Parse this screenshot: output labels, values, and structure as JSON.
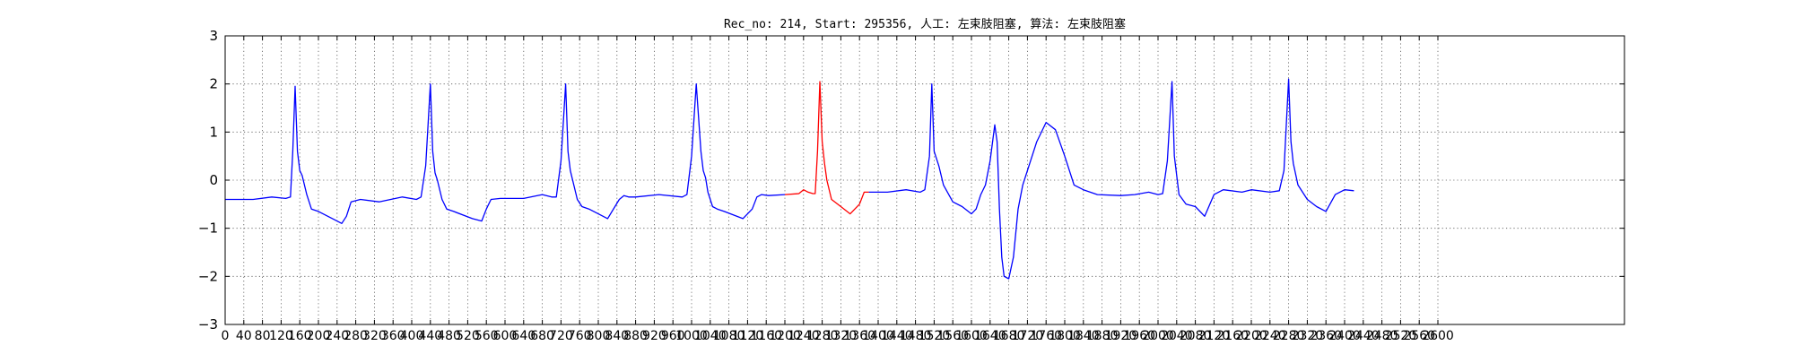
{
  "chart_data": {
    "type": "line",
    "title": "Rec_no: 214, Start: 295356, 人工: 左束肢阻塞, 算法: 左束肢阻塞",
    "xlabel": "",
    "ylabel": "",
    "xlim": [
      0,
      3000
    ],
    "ylim": [
      -3,
      3
    ],
    "grid": true,
    "x_ticks": [
      0,
      40,
      80,
      120,
      160,
      200,
      240,
      280,
      320,
      360,
      400,
      440,
      480,
      520,
      560,
      600,
      640,
      680,
      720,
      760,
      800,
      840,
      880,
      920,
      960,
      1000,
      1040,
      1080,
      1120,
      1160,
      1200,
      1240,
      1280,
      1320,
      1360,
      1400,
      1440,
      1480,
      1520,
      1560,
      1600,
      1640,
      1680,
      1720,
      1760,
      1800,
      1840,
      1880,
      1920,
      1960,
      2000,
      2040,
      2080,
      2120,
      2160,
      2200,
      2240,
      2280,
      2320,
      2360,
      2400,
      2440,
      2480,
      2520,
      2560,
      2600
    ],
    "x_tick_labels": [
      "0",
      "40",
      "80",
      "120",
      "160",
      "200",
      "240",
      "280",
      "320",
      "360",
      "400",
      "440",
      "480",
      "520",
      "560",
      "600",
      "640",
      "680",
      "720",
      "760",
      "800",
      "840",
      "880",
      "920",
      "960",
      "1000",
      "1040",
      "1080",
      "1120",
      "1160",
      "1200",
      "1240",
      "1280",
      "1320",
      "1360",
      "1400",
      "1440",
      "1480",
      "1520",
      "1560",
      "1600",
      "1640",
      "1680",
      "1720",
      "1760",
      "1800",
      "1840",
      "1880",
      "1920",
      "1960",
      "2000",
      "2040",
      "2080",
      "2120",
      "2160",
      "2200",
      "2240",
      "2280",
      "2320",
      "2360",
      "2400",
      "2440",
      "2480",
      "2520",
      "2560",
      "2600"
    ],
    "y_ticks": [
      -3,
      -2,
      -1,
      0,
      1,
      2,
      3
    ],
    "y_tick_labels": [
      "−3",
      "−2",
      "−1",
      "0",
      "1",
      "2",
      "3"
    ],
    "series": [
      {
        "color": "#0000ff",
        "x": [
          0,
          60,
          100,
          130,
          140,
          145,
          150,
          155,
          160,
          165,
          175,
          185,
          200,
          230,
          250,
          260,
          270,
          290,
          330,
          380,
          410,
          420,
          430,
          440,
          445,
          450,
          455,
          465,
          475,
          490,
          530,
          550,
          560,
          570,
          590,
          640,
          680,
          700,
          710,
          720,
          730,
          735,
          740,
          745,
          755,
          765,
          780,
          820,
          845,
          855,
          865,
          880,
          930,
          980,
          990,
          1000,
          1010,
          1020,
          1025,
          1030,
          1035,
          1045,
          1055,
          1070,
          1110,
          1130,
          1140,
          1150,
          1165,
          1200
        ],
        "y": [
          -0.4,
          -0.4,
          -0.35,
          -0.38,
          -0.35,
          0.6,
          1.95,
          0.6,
          0.2,
          0.1,
          -0.3,
          -0.6,
          -0.65,
          -0.8,
          -0.9,
          -0.75,
          -0.45,
          -0.4,
          -0.45,
          -0.35,
          -0.4,
          -0.35,
          0.3,
          2.0,
          0.6,
          0.15,
          0.0,
          -0.4,
          -0.6,
          -0.65,
          -0.8,
          -0.85,
          -0.6,
          -0.4,
          -0.38,
          -0.38,
          -0.3,
          -0.35,
          -0.35,
          0.4,
          2.0,
          0.6,
          0.2,
          0.0,
          -0.4,
          -0.55,
          -0.6,
          -0.8,
          -0.4,
          -0.32,
          -0.35,
          -0.35,
          -0.3,
          -0.35,
          -0.3,
          0.5,
          2.0,
          0.6,
          0.2,
          0.05,
          -0.25,
          -0.55,
          -0.6,
          -0.65,
          -0.8,
          -0.6,
          -0.35,
          -0.3,
          -0.32,
          -0.3
        ]
      },
      {
        "color": "#ff0000",
        "x": [
          1200,
          1230,
          1240,
          1250,
          1260,
          1265,
          1270,
          1275,
          1280,
          1285,
          1290,
          1300,
          1320,
          1340,
          1360,
          1370,
          1380
        ],
        "y": [
          -0.3,
          -0.28,
          -0.2,
          -0.25,
          -0.28,
          -0.28,
          0.6,
          2.05,
          0.8,
          0.35,
          0.0,
          -0.4,
          -0.55,
          -0.7,
          -0.5,
          -0.25,
          -0.25
        ]
      },
      {
        "color": "#0000ff",
        "x": [
          1380,
          1420,
          1460,
          1490,
          1500,
          1510,
          1515,
          1520,
          1530,
          1540,
          1560,
          1580,
          1600,
          1610,
          1620,
          1630,
          1640,
          1650,
          1655,
          1660,
          1665,
          1670,
          1680,
          1690,
          1700,
          1710,
          1720,
          1740,
          1760,
          1780,
          1800,
          1820,
          1840,
          1870,
          1920,
          1950,
          1980,
          2000,
          2010,
          2020,
          2030,
          2035,
          2045,
          2060,
          2080,
          2100,
          2120,
          2140,
          2180,
          2200,
          2240,
          2260,
          2270,
          2280,
          2285,
          2290,
          2300,
          2320,
          2340,
          2360,
          2380,
          2400,
          2420
        ],
        "y": [
          -0.25,
          -0.25,
          -0.2,
          -0.25,
          -0.2,
          0.5,
          2.0,
          0.6,
          0.3,
          -0.1,
          -0.45,
          -0.55,
          -0.7,
          -0.6,
          -0.3,
          -0.1,
          0.4,
          1.15,
          0.8,
          -0.6,
          -1.6,
          -2.0,
          -2.05,
          -1.6,
          -0.6,
          -0.1,
          0.2,
          0.8,
          1.2,
          1.05,
          0.5,
          -0.1,
          -0.2,
          -0.3,
          -0.32,
          -0.3,
          -0.25,
          -0.3,
          -0.28,
          0.4,
          2.05,
          0.5,
          -0.3,
          -0.5,
          -0.55,
          -0.75,
          -0.3,
          -0.2,
          -0.25,
          -0.2,
          -0.25,
          -0.22,
          0.2,
          2.1,
          0.8,
          0.35,
          -0.1,
          -0.4,
          -0.55,
          -0.65,
          -0.3,
          -0.2,
          -0.22
        ]
      }
    ]
  }
}
